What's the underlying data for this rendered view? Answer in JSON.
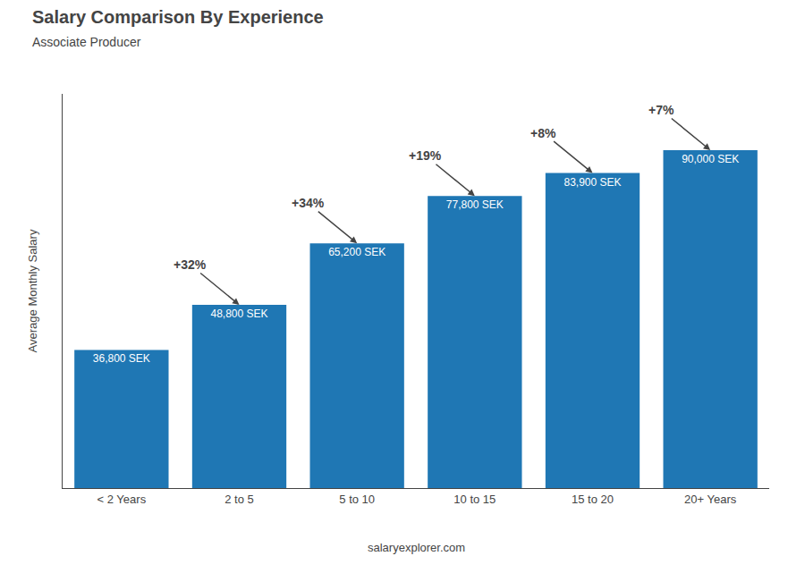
{
  "chart_data": {
    "type": "bar",
    "title": "Salary Comparison By Experience",
    "subtitle": "Associate Producer",
    "categories": [
      "< 2 Years",
      "2 to 5",
      "5 to 10",
      "10 to 15",
      "15 to 20",
      "20+ Years"
    ],
    "values": [
      36800,
      48800,
      65200,
      77800,
      83900,
      90000
    ],
    "value_labels": [
      "36,800 SEK",
      "48,800 SEK",
      "65,200 SEK",
      "77,800 SEK",
      "83,900 SEK",
      "90,000 SEK"
    ],
    "data_labels": true,
    "annotations": [
      null,
      "+32%",
      "+34%",
      "+19%",
      "+8%",
      "+7%"
    ],
    "ylabel": "Average Monthly Salary",
    "footer": "salaryexplorer.com",
    "ylim": [
      0,
      105000
    ],
    "tick_labels": "x",
    "grid": false
  }
}
